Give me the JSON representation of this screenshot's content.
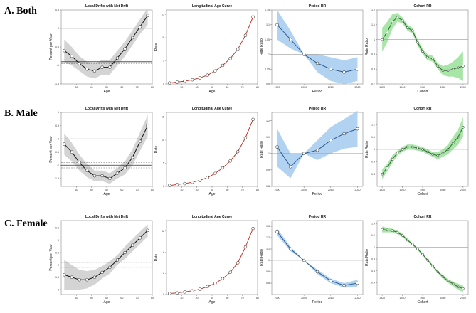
{
  "rows": [
    {
      "label": "A. Both"
    },
    {
      "label": "B. Male"
    },
    {
      "label": "C. Female"
    }
  ],
  "colors": {
    "drift_line": "#111111",
    "drift_band": "#cfcfcf",
    "age_line": "#c0392b",
    "period_line": "#2c5a8c",
    "period_band": "#a9cdf0",
    "cohort_line": "#2e6b2e",
    "cohort_band": "#9fe39f",
    "ref_line": "#9a9a9a"
  },
  "chart_data": [
    {
      "row": "A. Both",
      "type": "line",
      "title": "Local Drifts with Net Drift",
      "xlabel": "Age",
      "ylabel": "Percent per Year",
      "x": [
        22,
        27,
        32,
        37,
        42,
        47,
        52,
        57,
        62,
        67,
        72,
        77
      ],
      "values": [
        -0.6,
        -0.75,
        -0.95,
        -1.1,
        -1.15,
        -1.05,
        -1.05,
        -0.8,
        -0.55,
        -0.25,
        0.05,
        0.35
      ],
      "band": [
        [
          -0.9,
          -0.3
        ],
        [
          -1.0,
          -0.5
        ],
        [
          -1.15,
          -0.75
        ],
        [
          -1.3,
          -0.9
        ],
        [
          -1.35,
          -0.95
        ],
        [
          -1.25,
          -0.85
        ],
        [
          -1.25,
          -0.85
        ],
        [
          -1.0,
          -0.6
        ],
        [
          -0.75,
          -0.35
        ],
        [
          -0.45,
          -0.05
        ],
        [
          -0.15,
          0.25
        ],
        [
          0.1,
          0.55
        ]
      ],
      "net_drift": -0.9,
      "net_ci": [
        -0.95,
        -0.85
      ],
      "xlim": [
        20,
        80
      ],
      "ylim": [
        -1.5,
        0.5
      ],
      "xticks": [
        30,
        40,
        50,
        60,
        70,
        80
      ],
      "yticks": [
        -1.5,
        -1.0,
        -0.5,
        0.0,
        0.5
      ]
    },
    {
      "row": "A. Both",
      "type": "line",
      "title": "Longitudinal Age Curve",
      "xlabel": "Age",
      "ylabel": "Rate",
      "x": [
        22,
        27,
        32,
        37,
        42,
        47,
        52,
        57,
        62,
        67,
        72,
        77
      ],
      "values": [
        0.2,
        0.4,
        0.6,
        0.9,
        1.3,
        1.9,
        2.8,
        4.0,
        5.5,
        7.5,
        10.5,
        14.5
      ],
      "xlim": [
        20,
        80
      ],
      "ylim": [
        0,
        16
      ],
      "xticks": [
        30,
        40,
        50,
        60,
        70,
        80
      ],
      "yticks": [
        0,
        5,
        10,
        15
      ]
    },
    {
      "row": "A. Both",
      "type": "line",
      "title": "Period RR",
      "xlabel": "Period",
      "ylabel": "Rate Ratio",
      "x": [
        1990,
        1995,
        2000,
        2005,
        2010,
        2015,
        2020
      ],
      "values": [
        1.1,
        1.05,
        1.0,
        0.97,
        0.95,
        0.94,
        0.95
      ],
      "band": [
        [
          1.05,
          1.15
        ],
        [
          1.02,
          1.08
        ],
        [
          1.0,
          1.0
        ],
        [
          0.94,
          1.0
        ],
        [
          0.91,
          0.99
        ],
        [
          0.9,
          0.98
        ],
        [
          0.91,
          0.99
        ]
      ],
      "xlim": [
        1988,
        2022
      ],
      "ylim": [
        0.9,
        1.15
      ],
      "xticks": [
        1990,
        2000,
        2010,
        2020
      ],
      "yticks": [
        0.9,
        0.95,
        1.0,
        1.05,
        1.1,
        1.15
      ]
    },
    {
      "row": "A. Both",
      "type": "line",
      "title": "Cohort RR",
      "xlabel": "Cohort",
      "ylabel": "Rate Ratio",
      "x": [
        1920,
        1925,
        1930,
        1935,
        1940,
        1945,
        1950,
        1955,
        1960,
        1965,
        1970,
        1975,
        1980,
        1985,
        1990,
        1995,
        2000
      ],
      "values": [
        1.0,
        1.05,
        1.12,
        1.15,
        1.13,
        1.08,
        1.06,
        0.98,
        0.92,
        0.88,
        0.87,
        0.82,
        0.79,
        0.79,
        0.8,
        0.81,
        0.82
      ],
      "band": [
        [
          0.92,
          1.08
        ],
        [
          0.98,
          1.12
        ],
        [
          1.07,
          1.17
        ],
        [
          1.12,
          1.18
        ],
        [
          1.11,
          1.15
        ],
        [
          1.06,
          1.1
        ],
        [
          1.04,
          1.08
        ],
        [
          0.96,
          1.0
        ],
        [
          0.9,
          0.94
        ],
        [
          0.86,
          0.9
        ],
        [
          0.85,
          0.89
        ],
        [
          0.8,
          0.84
        ],
        [
          0.76,
          0.82
        ],
        [
          0.75,
          0.83
        ],
        [
          0.75,
          0.85
        ],
        [
          0.74,
          0.88
        ],
        [
          0.72,
          0.92
        ]
      ],
      "xlim": [
        1915,
        2005
      ],
      "ylim": [
        0.7,
        1.2
      ],
      "xticks": [
        1920,
        1940,
        1960,
        1980,
        2000
      ],
      "yticks": [
        0.7,
        0.8,
        0.9,
        1.0,
        1.1,
        1.2
      ]
    },
    {
      "row": "B. Male",
      "type": "line",
      "title": "Local Drifts with Net Drift",
      "xlabel": "Age",
      "ylabel": "Percent per Year",
      "x": [
        22,
        27,
        32,
        37,
        42,
        47,
        52,
        57,
        62,
        67,
        72,
        77
      ],
      "values": [
        -0.2,
        -0.5,
        -0.9,
        -1.2,
        -1.4,
        -1.4,
        -1.5,
        -1.3,
        -1.1,
        -0.7,
        -0.1,
        0.5
      ],
      "band": [
        [
          -0.6,
          0.2
        ],
        [
          -0.85,
          -0.15
        ],
        [
          -1.2,
          -0.6
        ],
        [
          -1.45,
          -0.95
        ],
        [
          -1.6,
          -1.2
        ],
        [
          -1.6,
          -1.2
        ],
        [
          -1.7,
          -1.3
        ],
        [
          -1.5,
          -1.1
        ],
        [
          -1.35,
          -0.85
        ],
        [
          -1.0,
          -0.4
        ],
        [
          -0.45,
          0.25
        ],
        [
          0.1,
          0.9
        ]
      ],
      "net_drift": -1.0,
      "net_ci": [
        -1.1,
        -0.9
      ],
      "xlim": [
        20,
        80
      ],
      "ylim": [
        -1.8,
        1.0
      ],
      "xticks": [
        30,
        40,
        50,
        60,
        70,
        80
      ],
      "yticks": [
        -1.5,
        -1.0,
        -0.5,
        0.0,
        0.5,
        1.0
      ]
    },
    {
      "row": "B. Male",
      "type": "line",
      "title": "Longitudinal Age Curve",
      "xlabel": "Age",
      "ylabel": "Rate",
      "x": [
        22,
        27,
        32,
        37,
        42,
        47,
        52,
        57,
        62,
        67,
        72,
        77
      ],
      "values": [
        0.2,
        0.4,
        0.6,
        0.9,
        1.3,
        1.9,
        2.8,
        4.0,
        5.5,
        7.5,
        10.5,
        14.5
      ],
      "xlim": [
        20,
        80
      ],
      "ylim": [
        0,
        16
      ],
      "xticks": [
        30,
        40,
        50,
        60,
        70,
        80
      ],
      "yticks": [
        0,
        5,
        10,
        15
      ]
    },
    {
      "row": "B. Male",
      "type": "line",
      "title": "Period RR",
      "xlabel": "Period",
      "ylabel": "Rate Ratio",
      "x": [
        1990,
        1995,
        2000,
        2005,
        2010,
        2015,
        2020
      ],
      "values": [
        1.04,
        0.92,
        1.0,
        1.02,
        1.08,
        1.12,
        1.15
      ],
      "band": [
        [
          0.92,
          1.15
        ],
        [
          0.85,
          1.0
        ],
        [
          1.0,
          1.0
        ],
        [
          0.96,
          1.08
        ],
        [
          1.0,
          1.16
        ],
        [
          1.03,
          1.21
        ],
        [
          1.04,
          1.26
        ]
      ],
      "xlim": [
        1988,
        2022
      ],
      "ylim": [
        0.8,
        1.25
      ],
      "xticks": [
        1990,
        2000,
        2010,
        2020
      ],
      "yticks": [
        0.8,
        0.9,
        1.0,
        1.1,
        1.2
      ]
    },
    {
      "row": "B. Male",
      "type": "line",
      "title": "Cohort RR",
      "xlabel": "Cohort",
      "ylabel": "Rate Ratio",
      "x": [
        1920,
        1925,
        1930,
        1935,
        1940,
        1945,
        1950,
        1955,
        1960,
        1965,
        1970,
        1975,
        1980,
        1985,
        1990,
        1995,
        2000
      ],
      "values": [
        0.8,
        0.85,
        0.92,
        0.97,
        1.0,
        1.02,
        1.02,
        1.01,
        1.0,
        0.98,
        0.96,
        0.95,
        0.97,
        1.0,
        1.05,
        1.1,
        1.18
      ],
      "band": [
        [
          0.76,
          0.84
        ],
        [
          0.82,
          0.88
        ],
        [
          0.89,
          0.95
        ],
        [
          0.95,
          0.99
        ],
        [
          0.98,
          1.02
        ],
        [
          1.0,
          1.04
        ],
        [
          1.0,
          1.04
        ],
        [
          0.99,
          1.03
        ],
        [
          0.98,
          1.02
        ],
        [
          0.96,
          1.0
        ],
        [
          0.94,
          0.98
        ],
        [
          0.92,
          0.98
        ],
        [
          0.94,
          1.0
        ],
        [
          0.96,
          1.04
        ],
        [
          1.0,
          1.1
        ],
        [
          1.04,
          1.16
        ],
        [
          1.1,
          1.26
        ]
      ],
      "xlim": [
        1915,
        2005
      ],
      "ylim": [
        0.7,
        1.3
      ],
      "xticks": [
        1920,
        1940,
        1960,
        1980,
        2000
      ],
      "yticks": [
        0.8,
        0.9,
        1.0,
        1.1,
        1.2
      ]
    },
    {
      "row": "C. Female",
      "type": "line",
      "title": "Local Drifts with Net Drift",
      "xlabel": "Age",
      "ylabel": "Percent per Year",
      "x": [
        22,
        27,
        32,
        37,
        42,
        47,
        52,
        57,
        62,
        67,
        72,
        77
      ],
      "values": [
        -1.4,
        -1.5,
        -1.6,
        -1.6,
        -1.5,
        -1.3,
        -1.1,
        -0.8,
        -0.5,
        -0.2,
        0.1,
        0.4
      ],
      "band": [
        [
          -2.0,
          -0.8
        ],
        [
          -2.0,
          -1.0
        ],
        [
          -2.0,
          -1.2
        ],
        [
          -1.95,
          -1.25
        ],
        [
          -1.8,
          -1.2
        ],
        [
          -1.55,
          -1.05
        ],
        [
          -1.35,
          -0.85
        ],
        [
          -1.0,
          -0.6
        ],
        [
          -0.75,
          -0.25
        ],
        [
          -0.45,
          0.05
        ],
        [
          -0.15,
          0.35
        ],
        [
          0.15,
          0.65
        ]
      ],
      "net_drift": -1.0,
      "net_ci": [
        -1.1,
        -0.9
      ],
      "xlim": [
        20,
        80
      ],
      "ylim": [
        -2.2,
        0.8
      ],
      "xticks": [
        30,
        40,
        50,
        60,
        70,
        80
      ],
      "yticks": [
        -2.0,
        -1.5,
        -1.0,
        -0.5,
        0.0,
        0.5
      ]
    },
    {
      "row": "C. Female",
      "type": "line",
      "title": "Longitudinal Age Curve",
      "xlabel": "Age",
      "ylabel": "Rate",
      "x": [
        22,
        27,
        32,
        37,
        42,
        47,
        52,
        57,
        62,
        67,
        72,
        77
      ],
      "values": [
        0.2,
        0.3,
        0.5,
        0.7,
        1.0,
        1.5,
        2.1,
        3.0,
        4.2,
        6.0,
        9.0,
        12.5
      ],
      "xlim": [
        20,
        80
      ],
      "ylim": [
        0,
        14
      ],
      "xticks": [
        30,
        40,
        50,
        60,
        70,
        80
      ],
      "yticks": [
        0,
        4,
        8,
        12
      ]
    },
    {
      "row": "C. Female",
      "type": "line",
      "title": "Period RR",
      "xlabel": "Period",
      "ylabel": "Rate Ratio",
      "x": [
        1990,
        1995,
        2000,
        2005,
        2010,
        2015,
        2020
      ],
      "values": [
        1.25,
        1.1,
        1.0,
        0.9,
        0.82,
        0.78,
        0.8
      ],
      "band": [
        [
          1.22,
          1.28
        ],
        [
          1.08,
          1.12
        ],
        [
          1.0,
          1.0
        ],
        [
          0.88,
          0.92
        ],
        [
          0.8,
          0.84
        ],
        [
          0.76,
          0.8
        ],
        [
          0.77,
          0.83
        ]
      ],
      "xlim": [
        1988,
        2022
      ],
      "ylim": [
        0.7,
        1.35
      ],
      "xticks": [
        1990,
        2000,
        2010,
        2020
      ],
      "yticks": [
        0.8,
        0.9,
        1.0,
        1.1,
        1.2,
        1.3
      ]
    },
    {
      "row": "C. Female",
      "type": "line",
      "title": "Cohort RR",
      "xlabel": "Cohort",
      "ylabel": "Rate Ratio",
      "x": [
        1920,
        1925,
        1930,
        1935,
        1940,
        1945,
        1950,
        1955,
        1960,
        1965,
        1970,
        1975,
        1980,
        1985,
        1990,
        1995,
        2000
      ],
      "values": [
        1.3,
        1.29,
        1.28,
        1.25,
        1.2,
        1.12,
        1.05,
        0.97,
        0.88,
        0.78,
        0.68,
        0.58,
        0.5,
        0.43,
        0.38,
        0.33,
        0.3
      ],
      "band": [
        [
          1.25,
          1.35
        ],
        [
          1.25,
          1.33
        ],
        [
          1.25,
          1.31
        ],
        [
          1.22,
          1.28
        ],
        [
          1.17,
          1.23
        ],
        [
          1.1,
          1.14
        ],
        [
          1.03,
          1.07
        ],
        [
          0.95,
          0.99
        ],
        [
          0.86,
          0.9
        ],
        [
          0.76,
          0.8
        ],
        [
          0.66,
          0.7
        ],
        [
          0.56,
          0.6
        ],
        [
          0.47,
          0.53
        ],
        [
          0.4,
          0.46
        ],
        [
          0.34,
          0.42
        ],
        [
          0.28,
          0.38
        ],
        [
          0.24,
          0.36
        ]
      ],
      "xlim": [
        1915,
        2005
      ],
      "ylim": [
        0.2,
        1.45
      ],
      "xticks": [
        1920,
        1940,
        1960,
        1980,
        2000
      ],
      "yticks": [
        0.4,
        0.6,
        0.8,
        1.0,
        1.2,
        1.4
      ]
    }
  ]
}
